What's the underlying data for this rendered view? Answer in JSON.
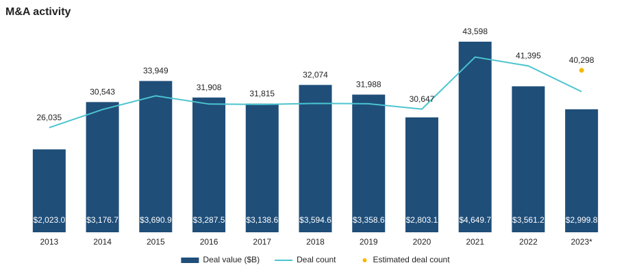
{
  "chart_data": {
    "type": "bar",
    "title": "M&A activity",
    "categories": [
      "2013",
      "2014",
      "2015",
      "2016",
      "2017",
      "2018",
      "2019",
      "2020",
      "2021",
      "2022",
      "2023*"
    ],
    "ylim": [
      0,
      5000
    ],
    "y2lim": [
      0,
      51000
    ],
    "series": [
      {
        "name": "Deal value ($B)",
        "type": "bar",
        "color": "#1f4e79",
        "values": [
          2023.0,
          3176.7,
          3690.9,
          3287.5,
          3138.6,
          3594.6,
          3358.6,
          2803.1,
          4649.7,
          3561.2,
          2999.8
        ],
        "value_labels": [
          "$2,023.0",
          "$3,176.7",
          "$3,690.9",
          "$3,287.5",
          "$3,138.6",
          "$3,594.6",
          "$3,358.6",
          "$2,803.1",
          "$4,649.7",
          "$3,561.2",
          "$2,999.8"
        ]
      },
      {
        "name": "Deal count",
        "type": "line",
        "axis": "y2",
        "color": "#4bc4cf",
        "values": [
          26035,
          30543,
          33949,
          31908,
          31815,
          32074,
          31988,
          30647,
          43598,
          41395,
          35000
        ],
        "value_labels": [
          "26,035",
          "30,543",
          "33,949",
          "31,908",
          "31,815",
          "32,074",
          "31,988",
          "30,647",
          "43,598",
          "41,395",
          null
        ]
      },
      {
        "name": "Estimated deal count",
        "type": "scatter",
        "axis": "y2",
        "color": "#f5b800",
        "values": [
          null,
          null,
          null,
          null,
          null,
          null,
          null,
          null,
          null,
          null,
          40298
        ],
        "value_labels": [
          null,
          null,
          null,
          null,
          null,
          null,
          null,
          null,
          null,
          null,
          "40,298"
        ]
      }
    ]
  }
}
